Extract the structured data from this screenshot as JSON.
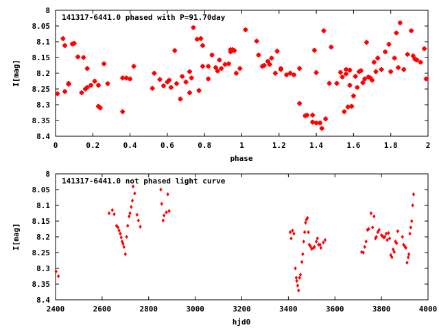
{
  "chart_data": [
    {
      "type": "scatter",
      "title": "141317-6441.0 phased with P=91.70day",
      "xlabel": "phase",
      "ylabel": "I[mag]",
      "xlim": [
        0,
        2
      ],
      "ylim": [
        8.4,
        8.0
      ],
      "y_inverted": true,
      "x_ticks": [
        "0",
        "0.2",
        "0.4",
        "0.6",
        "0.8",
        "1",
        "1.2",
        "1.4",
        "1.6",
        "1.8",
        "2"
      ],
      "y_ticks": [
        "8",
        "8.05",
        "8.1",
        "8.15",
        "8.2",
        "8.25",
        "8.3",
        "8.35",
        "8.4"
      ],
      "grid": false,
      "marker_color": "#ff0000",
      "marker_shape": "filled-square",
      "points": [
        [
          0.01,
          8.265
        ],
        [
          0.04,
          8.09
        ],
        [
          0.05,
          8.112
        ],
        [
          0.05,
          8.258
        ],
        [
          0.07,
          8.235
        ],
        [
          0.07,
          8.232
        ],
        [
          0.09,
          8.107
        ],
        [
          0.1,
          8.105
        ],
        [
          0.12,
          8.148
        ],
        [
          0.14,
          8.262
        ],
        [
          0.15,
          8.15
        ],
        [
          0.16,
          8.25
        ],
        [
          0.17,
          8.245
        ],
        [
          0.17,
          8.185
        ],
        [
          0.19,
          8.238
        ],
        [
          0.21,
          8.225
        ],
        [
          0.23,
          8.238
        ],
        [
          0.23,
          8.305
        ],
        [
          0.24,
          8.31
        ],
        [
          0.26,
          8.17
        ],
        [
          0.28,
          8.233
        ],
        [
          0.36,
          8.215
        ],
        [
          0.36,
          8.322
        ],
        [
          0.38,
          8.215
        ],
        [
          0.4,
          8.218
        ],
        [
          0.42,
          8.178
        ],
        [
          0.52,
          8.248
        ],
        [
          0.53,
          8.2
        ],
        [
          0.56,
          8.22
        ],
        [
          0.58,
          8.24
        ],
        [
          0.6,
          8.228
        ],
        [
          0.61,
          8.222
        ],
        [
          0.62,
          8.245
        ],
        [
          0.64,
          8.128
        ],
        [
          0.65,
          8.233
        ],
        [
          0.67,
          8.282
        ],
        [
          0.68,
          8.21
        ],
        [
          0.7,
          8.228
        ],
        [
          0.72,
          8.195
        ],
        [
          0.72,
          8.262
        ],
        [
          0.73,
          8.215
        ],
        [
          0.74,
          8.055
        ],
        [
          0.76,
          8.092
        ],
        [
          0.77,
          8.255
        ],
        [
          0.78,
          8.09
        ],
        [
          0.79,
          8.112
        ],
        [
          0.79,
          8.178
        ],
        [
          0.82,
          8.218
        ],
        [
          0.82,
          8.178
        ],
        [
          0.84,
          8.142
        ],
        [
          0.86,
          8.182
        ],
        [
          0.87,
          8.193
        ],
        [
          0.88,
          8.158
        ],
        [
          0.89,
          8.185
        ],
        [
          0.91,
          8.172
        ],
        [
          0.93,
          8.17
        ],
        [
          0.94,
          8.132
        ],
        [
          0.94,
          8.125
        ],
        [
          0.95,
          8.125
        ],
        [
          0.96,
          8.128
        ],
        [
          0.97,
          8.2
        ],
        [
          0.99,
          8.185
        ],
        [
          1.02,
          8.062
        ],
        [
          1.08,
          8.098
        ],
        [
          1.09,
          8.142
        ],
        [
          1.11,
          8.178
        ],
        [
          1.12,
          8.175
        ],
        [
          1.14,
          8.162
        ],
        [
          1.15,
          8.172
        ],
        [
          1.16,
          8.152
        ],
        [
          1.18,
          8.2
        ],
        [
          1.19,
          8.13
        ],
        [
          1.21,
          8.185
        ],
        [
          1.21,
          8.188
        ],
        [
          1.24,
          8.205
        ],
        [
          1.26,
          8.2
        ],
        [
          1.28,
          8.205
        ],
        [
          1.31,
          8.185
        ],
        [
          1.31,
          8.296
        ],
        [
          1.34,
          8.335
        ],
        [
          1.35,
          8.333
        ],
        [
          1.38,
          8.333
        ],
        [
          1.38,
          8.355
        ],
        [
          1.39,
          8.127
        ],
        [
          1.4,
          8.358
        ],
        [
          1.4,
          8.198
        ],
        [
          1.42,
          8.358
        ],
        [
          1.43,
          8.375
        ],
        [
          1.44,
          8.065
        ],
        [
          1.45,
          8.345
        ],
        [
          1.47,
          8.232
        ],
        [
          1.48,
          8.117
        ],
        [
          1.51,
          8.232
        ],
        [
          1.53,
          8.197
        ],
        [
          1.54,
          8.212
        ],
        [
          1.55,
          8.322
        ],
        [
          1.56,
          8.202
        ],
        [
          1.56,
          8.188
        ],
        [
          1.57,
          8.307
        ],
        [
          1.58,
          8.19
        ],
        [
          1.58,
          8.238
        ],
        [
          1.59,
          8.305
        ],
        [
          1.6,
          8.272
        ],
        [
          1.61,
          8.21
        ],
        [
          1.62,
          8.245
        ],
        [
          1.63,
          8.195
        ],
        [
          1.64,
          8.192
        ],
        [
          1.65,
          8.23
        ],
        [
          1.66,
          8.218
        ],
        [
          1.67,
          8.102
        ],
        [
          1.68,
          8.212
        ],
        [
          1.69,
          8.215
        ],
        [
          1.7,
          8.222
        ],
        [
          1.71,
          8.165
        ],
        [
          1.72,
          8.195
        ],
        [
          1.73,
          8.152
        ],
        [
          1.75,
          8.188
        ],
        [
          1.77,
          8.132
        ],
        [
          1.79,
          8.108
        ],
        [
          1.8,
          8.195
        ],
        [
          1.82,
          8.152
        ],
        [
          1.83,
          8.072
        ],
        [
          1.84,
          8.182
        ],
        [
          1.85,
          8.04
        ],
        [
          1.87,
          8.188
        ],
        [
          1.89,
          8.14
        ],
        [
          1.91,
          8.065
        ],
        [
          1.92,
          8.145
        ],
        [
          1.93,
          8.155
        ],
        [
          1.94,
          8.158
        ],
        [
          1.96,
          8.165
        ],
        [
          1.98,
          8.122
        ],
        [
          1.99,
          8.218
        ]
      ]
    },
    {
      "type": "scatter",
      "title": "141317-6441.0 not phased light curve",
      "xlabel": "hjd0",
      "ylabel": "I[mag]",
      "xlim": [
        2400,
        4000
      ],
      "ylim": [
        8.4,
        8.0
      ],
      "y_inverted": true,
      "x_ticks": [
        "2400",
        "2600",
        "2800",
        "3000",
        "3200",
        "3400",
        "3600",
        "3800",
        "4000"
      ],
      "y_ticks": [
        "8",
        "8.05",
        "8.1",
        "8.15",
        "8.2",
        "8.25",
        "8.3",
        "8.35",
        "8.4"
      ],
      "grid": false,
      "marker_color": "#ff0000",
      "marker_shape": "filled-diamond",
      "points": [
        [
          2402,
          8.31
        ],
        [
          2412,
          8.325
        ],
        [
          2630,
          8.125
        ],
        [
          2644,
          8.115
        ],
        [
          2652,
          8.128
        ],
        [
          2662,
          8.165
        ],
        [
          2668,
          8.17
        ],
        [
          2673,
          8.18
        ],
        [
          2678,
          8.19
        ],
        [
          2682,
          8.202
        ],
        [
          2686,
          8.215
        ],
        [
          2690,
          8.222
        ],
        [
          2694,
          8.232
        ],
        [
          2700,
          8.255
        ],
        [
          2705,
          8.2
        ],
        [
          2710,
          8.165
        ],
        [
          2716,
          8.135
        ],
        [
          2720,
          8.125
        ],
        [
          2725,
          8.105
        ],
        [
          2730,
          8.085
        ],
        [
          2733,
          8.04
        ],
        [
          2740,
          8.062
        ],
        [
          2750,
          8.13
        ],
        [
          2756,
          8.148
        ],
        [
          2764,
          8.168
        ],
        [
          2852,
          8.05
        ],
        [
          2856,
          8.095
        ],
        [
          2862,
          8.148
        ],
        [
          2866,
          8.132
        ],
        [
          2876,
          8.122
        ],
        [
          2882,
          8.065
        ],
        [
          2888,
          8.118
        ],
        [
          3408,
          8.185
        ],
        [
          3412,
          8.205
        ],
        [
          3418,
          8.18
        ],
        [
          3424,
          8.19
        ],
        [
          3430,
          8.3
        ],
        [
          3434,
          8.33
        ],
        [
          3436,
          8.34
        ],
        [
          3440,
          8.355
        ],
        [
          3444,
          8.37
        ],
        [
          3448,
          8.33
        ],
        [
          3452,
          8.32
        ],
        [
          3458,
          8.28
        ],
        [
          3462,
          8.255
        ],
        [
          3466,
          8.215
        ],
        [
          3470,
          8.185
        ],
        [
          3474,
          8.155
        ],
        [
          3478,
          8.145
        ],
        [
          3482,
          8.14
        ],
        [
          3486,
          8.185
        ],
        [
          3490,
          8.225
        ],
        [
          3495,
          8.23
        ],
        [
          3500,
          8.238
        ],
        [
          3508,
          8.235
        ],
        [
          3512,
          8.232
        ],
        [
          3520,
          8.215
        ],
        [
          3525,
          8.205
        ],
        [
          3530,
          8.225
        ],
        [
          3536,
          8.225
        ],
        [
          3540,
          8.235
        ],
        [
          3550,
          8.218
        ],
        [
          3558,
          8.21
        ],
        [
          3715,
          8.248
        ],
        [
          3722,
          8.25
        ],
        [
          3728,
          8.232
        ],
        [
          3734,
          8.215
        ],
        [
          3740,
          8.178
        ],
        [
          3745,
          8.175
        ],
        [
          3755,
          8.125
        ],
        [
          3762,
          8.17
        ],
        [
          3768,
          8.135
        ],
        [
          3774,
          8.205
        ],
        [
          3778,
          8.2
        ],
        [
          3784,
          8.185
        ],
        [
          3790,
          8.178
        ],
        [
          3800,
          8.195
        ],
        [
          3805,
          8.198
        ],
        [
          3810,
          8.202
        ],
        [
          3814,
          8.2
        ],
        [
          3820,
          8.19
        ],
        [
          3825,
          8.21
        ],
        [
          3830,
          8.188
        ],
        [
          3835,
          8.205
        ],
        [
          3840,
          8.258
        ],
        [
          3845,
          8.265
        ],
        [
          3850,
          8.24
        ],
        [
          3855,
          8.248
        ],
        [
          3860,
          8.215
        ],
        [
          3865,
          8.22
        ],
        [
          3870,
          8.182
        ],
        [
          3890,
          8.2
        ],
        [
          3895,
          8.225
        ],
        [
          3900,
          8.23
        ],
        [
          3905,
          8.235
        ],
        [
          3910,
          8.282
        ],
        [
          3915,
          8.265
        ],
        [
          3918,
          8.255
        ],
        [
          3922,
          8.19
        ],
        [
          3926,
          8.17
        ],
        [
          3930,
          8.15
        ],
        [
          3934,
          8.1
        ],
        [
          3938,
          8.065
        ]
      ]
    }
  ]
}
